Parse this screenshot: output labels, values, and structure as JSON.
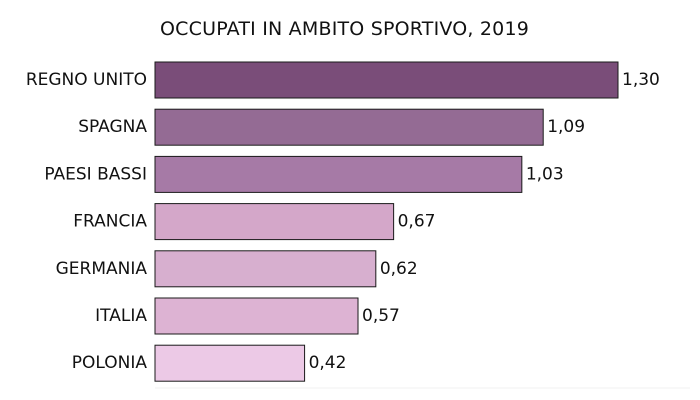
{
  "chart_data": {
    "type": "bar",
    "orientation": "horizontal",
    "title": "OCCUPATI IN AMBITO SPORTIVO, 2019",
    "categories": [
      "REGNO UNITO",
      "SPAGNA",
      "PAESI BASSI",
      "FRANCIA",
      "GERMANIA",
      "ITALIA",
      "POLONIA"
    ],
    "values": [
      1.3,
      1.09,
      1.03,
      0.67,
      0.62,
      0.57,
      0.42
    ],
    "value_labels": [
      "1,30",
      "1,09",
      "1,03",
      "0,67",
      "0,62",
      "0,57",
      "0,42"
    ],
    "bar_colors": [
      "#7a4d79",
      "#946b94",
      "#a67aa6",
      "#d4a7c9",
      "#d7afcf",
      "#ddb3d3",
      "#ecc9e6"
    ],
    "xlim": [
      0,
      1.3
    ],
    "xlabel": "",
    "ylabel": "",
    "grid": false,
    "legend": "none"
  }
}
